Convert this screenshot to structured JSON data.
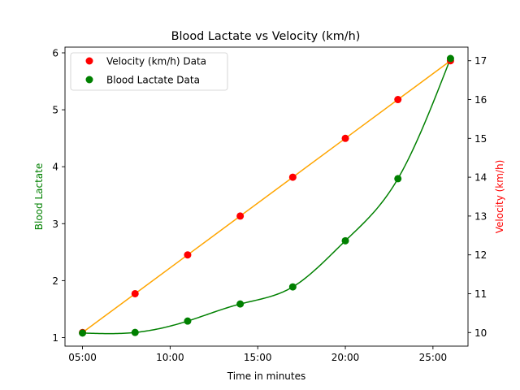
{
  "chart_data": {
    "type": "line",
    "title": "Blood Lactate vs Velocity (km/h)",
    "xlabel": "Time in minutes",
    "ylabel_left": "Blood Lactate",
    "ylabel_right": "Velocity (km/h)",
    "x_ticks": [
      "05:00",
      "10:00",
      "15:00",
      "20:00",
      "25:00"
    ],
    "x_tick_values": [
      5,
      10,
      15,
      20,
      25
    ],
    "xlim": [
      4,
      27
    ],
    "y_left_ticks": [
      1,
      2,
      3,
      4,
      5,
      6
    ],
    "ylim_left": [
      0.85,
      6.1
    ],
    "y_right_ticks": [
      10,
      11,
      12,
      13,
      14,
      15,
      16,
      17
    ],
    "ylim_right": [
      9.65,
      17.35
    ],
    "x": [
      5,
      8,
      11,
      14,
      17,
      20,
      23,
      26
    ],
    "series": [
      {
        "name": "Velocity (km/h) Data",
        "axis": "right",
        "values": [
          10,
          11,
          12,
          13,
          14,
          15,
          16,
          17
        ],
        "marker_color": "#ff0000",
        "line_color": "#ffa500"
      },
      {
        "name": "Blood Lactate Data",
        "axis": "left",
        "values": [
          1.08,
          1.09,
          1.29,
          1.59,
          1.89,
          2.7,
          3.79,
          5.9
        ],
        "marker_color": "#008000",
        "line_color": "#008000"
      }
    ],
    "legend": {
      "placement": "upper-left"
    },
    "grid": false,
    "left_label_color": "#008000",
    "right_label_color": "#ff0000"
  }
}
